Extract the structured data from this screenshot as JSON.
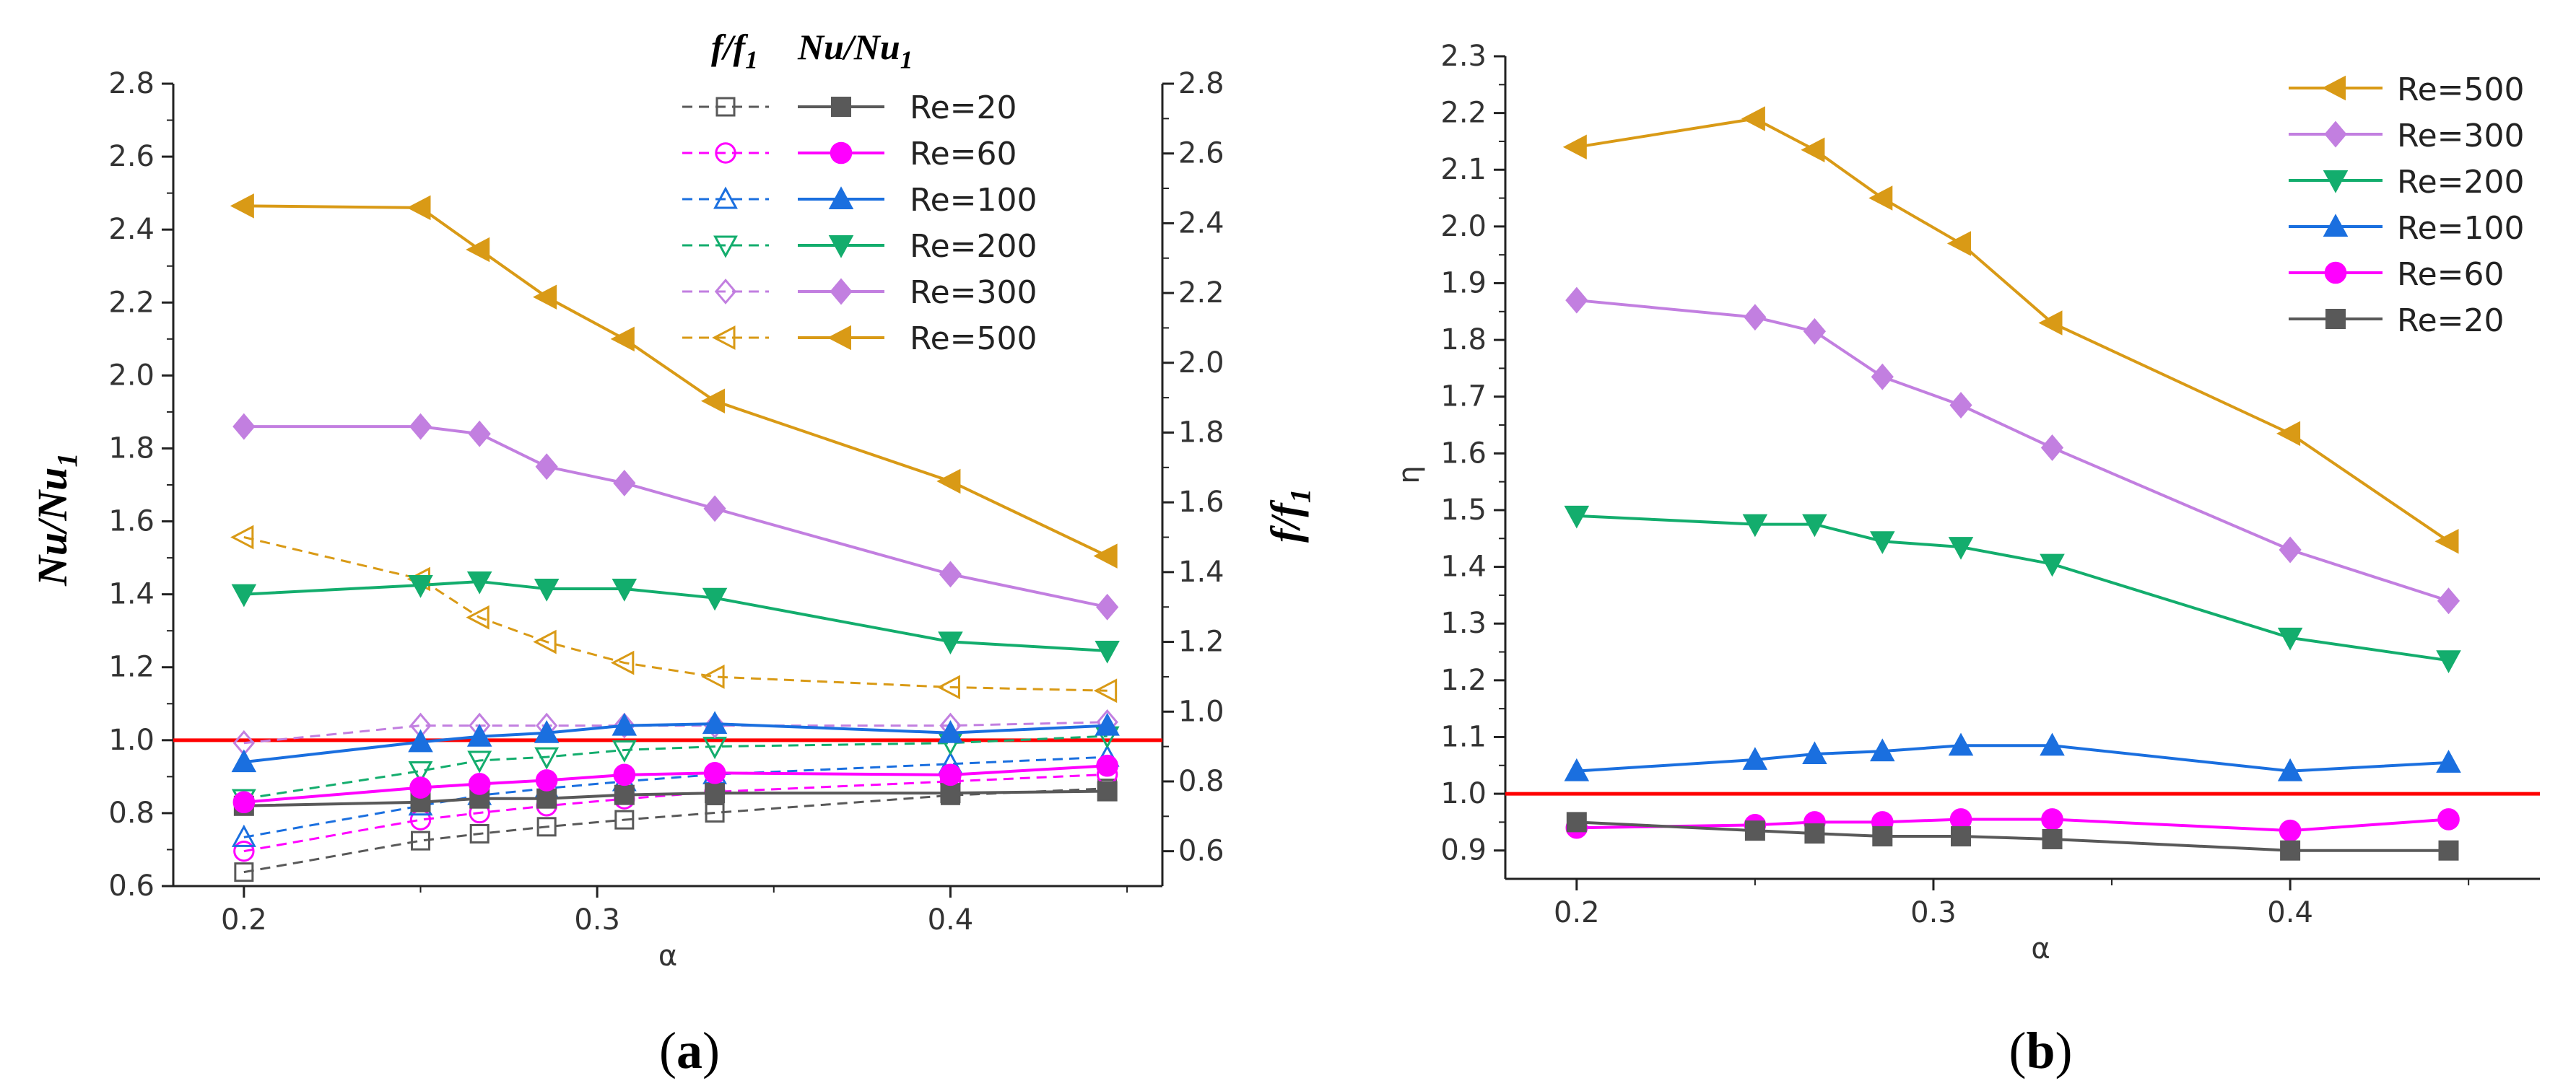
{
  "colors": {
    "Re=20": "#595959",
    "Re=60": "#ff00ff",
    "Re=100": "#1a6fdf",
    "Re=200": "#13ad6d",
    "Re=300": "#c27fe0",
    "Re=500": "#d99a16",
    "reference": "#ff0000"
  },
  "markers": {
    "Re=20": "square",
    "Re=60": "circle",
    "Re=100": "triangle-up",
    "Re=200": "triangle-down",
    "Re=300": "diamond",
    "Re=500": "triangle-left"
  },
  "chart_data": [
    {
      "panel": "a",
      "panel_label": "a",
      "type": "line",
      "x": [
        0.2,
        0.25,
        0.2667,
        0.2857,
        0.3077,
        0.3333,
        0.4,
        0.4444
      ],
      "xlim": [
        0.18,
        0.46
      ],
      "xticks": [
        "0.2",
        "0.3",
        "0.4"
      ],
      "xlabel": "α",
      "ylabel_left": "Nu/Nu",
      "ylabel_left_sub": "1",
      "ylabel_right": "f/f",
      "ylabel_right_sub": "1",
      "ylim_left": [
        0.6,
        2.8
      ],
      "ylim_right": [
        0.5,
        2.8
      ],
      "yticks_left": [
        "0.6",
        "0.8",
        "1.0",
        "1.2",
        "1.4",
        "1.6",
        "1.8",
        "2.0",
        "2.2",
        "2.4",
        "2.6",
        "2.8"
      ],
      "yticks_right": [
        "0.6",
        "0.8",
        "1.0",
        "1.2",
        "1.4",
        "1.6",
        "1.8",
        "2.0",
        "2.2",
        "2.4",
        "2.6",
        "2.8"
      ],
      "reference_line": 1.0,
      "legend_header_left": "f/f",
      "legend_header_left_sub": "1",
      "legend_header_right": "Nu/Nu",
      "legend_header_right_sub": "1",
      "legend": [
        "Re=20",
        "Re=60",
        "Re=100",
        "Re=200",
        "Re=300",
        "Re=500"
      ],
      "series_nu": [
        {
          "name": "Re=20",
          "values": [
            0.82,
            0.83,
            0.84,
            0.84,
            0.85,
            0.855,
            0.855,
            0.86
          ]
        },
        {
          "name": "Re=60",
          "values": [
            0.83,
            0.87,
            0.88,
            0.89,
            0.905,
            0.91,
            0.905,
            0.93
          ]
        },
        {
          "name": "Re=100",
          "values": [
            0.94,
            0.995,
            1.01,
            1.02,
            1.04,
            1.045,
            1.02,
            1.04
          ]
        },
        {
          "name": "Re=200",
          "values": [
            1.4,
            1.425,
            1.435,
            1.415,
            1.415,
            1.39,
            1.27,
            1.245
          ]
        },
        {
          "name": "Re=300",
          "values": [
            1.86,
            1.86,
            1.84,
            1.75,
            1.705,
            1.635,
            1.455,
            1.365
          ]
        },
        {
          "name": "Re=500",
          "values": [
            2.465,
            2.46,
            2.345,
            2.215,
            2.1,
            1.93,
            1.71,
            1.505
          ]
        }
      ],
      "series_f": [
        {
          "name": "Re=20",
          "values": [
            0.54,
            0.63,
            0.65,
            0.67,
            0.69,
            0.71,
            0.76,
            0.78
          ]
        },
        {
          "name": "Re=60",
          "values": [
            0.6,
            0.69,
            0.71,
            0.73,
            0.75,
            0.77,
            0.8,
            0.82
          ]
        },
        {
          "name": "Re=100",
          "values": [
            0.64,
            0.73,
            0.76,
            0.78,
            0.8,
            0.82,
            0.85,
            0.87
          ]
        },
        {
          "name": "Re=200",
          "values": [
            0.75,
            0.83,
            0.86,
            0.87,
            0.89,
            0.9,
            0.91,
            0.93
          ]
        },
        {
          "name": "Re=300",
          "values": [
            0.91,
            0.96,
            0.96,
            0.96,
            0.96,
            0.96,
            0.96,
            0.97
          ]
        },
        {
          "name": "Re=500",
          "values": [
            1.5,
            1.38,
            1.27,
            1.2,
            1.14,
            1.1,
            1.07,
            1.06
          ]
        }
      ]
    },
    {
      "panel": "b",
      "panel_label": "b",
      "type": "line",
      "x": [
        0.2,
        0.25,
        0.2667,
        0.2857,
        0.3077,
        0.3333,
        0.4,
        0.4444
      ],
      "xlim": [
        0.18,
        0.47
      ],
      "xticks": [
        "0.2",
        "0.3",
        "0.4"
      ],
      "xlabel": "α",
      "ylabel": "η",
      "ylim": [
        0.85,
        2.3
      ],
      "yticks": [
        "0.9",
        "1.0",
        "1.1",
        "1.2",
        "1.3",
        "1.4",
        "1.5",
        "1.6",
        "1.7",
        "1.8",
        "1.9",
        "2.0",
        "2.1",
        "2.2",
        "2.3"
      ],
      "reference_line": 1.0,
      "legend": [
        "Re=500",
        "Re=300",
        "Re=200",
        "Re=100",
        "Re=60",
        "Re=20"
      ],
      "series": [
        {
          "name": "Re=500",
          "values": [
            2.14,
            2.19,
            2.135,
            2.05,
            1.97,
            1.83,
            1.635,
            1.445
          ]
        },
        {
          "name": "Re=300",
          "values": [
            1.87,
            1.84,
            1.815,
            1.735,
            1.685,
            1.61,
            1.43,
            1.34
          ]
        },
        {
          "name": "Re=200",
          "values": [
            1.49,
            1.475,
            1.475,
            1.445,
            1.435,
            1.405,
            1.275,
            1.235
          ]
        },
        {
          "name": "Re=100",
          "values": [
            1.04,
            1.06,
            1.07,
            1.075,
            1.085,
            1.085,
            1.04,
            1.055
          ]
        },
        {
          "name": "Re=60",
          "values": [
            0.94,
            0.945,
            0.95,
            0.95,
            0.955,
            0.955,
            0.935,
            0.955
          ]
        },
        {
          "name": "Re=20",
          "values": [
            0.95,
            0.935,
            0.93,
            0.925,
            0.925,
            0.92,
            0.9,
            0.9
          ]
        }
      ]
    }
  ]
}
